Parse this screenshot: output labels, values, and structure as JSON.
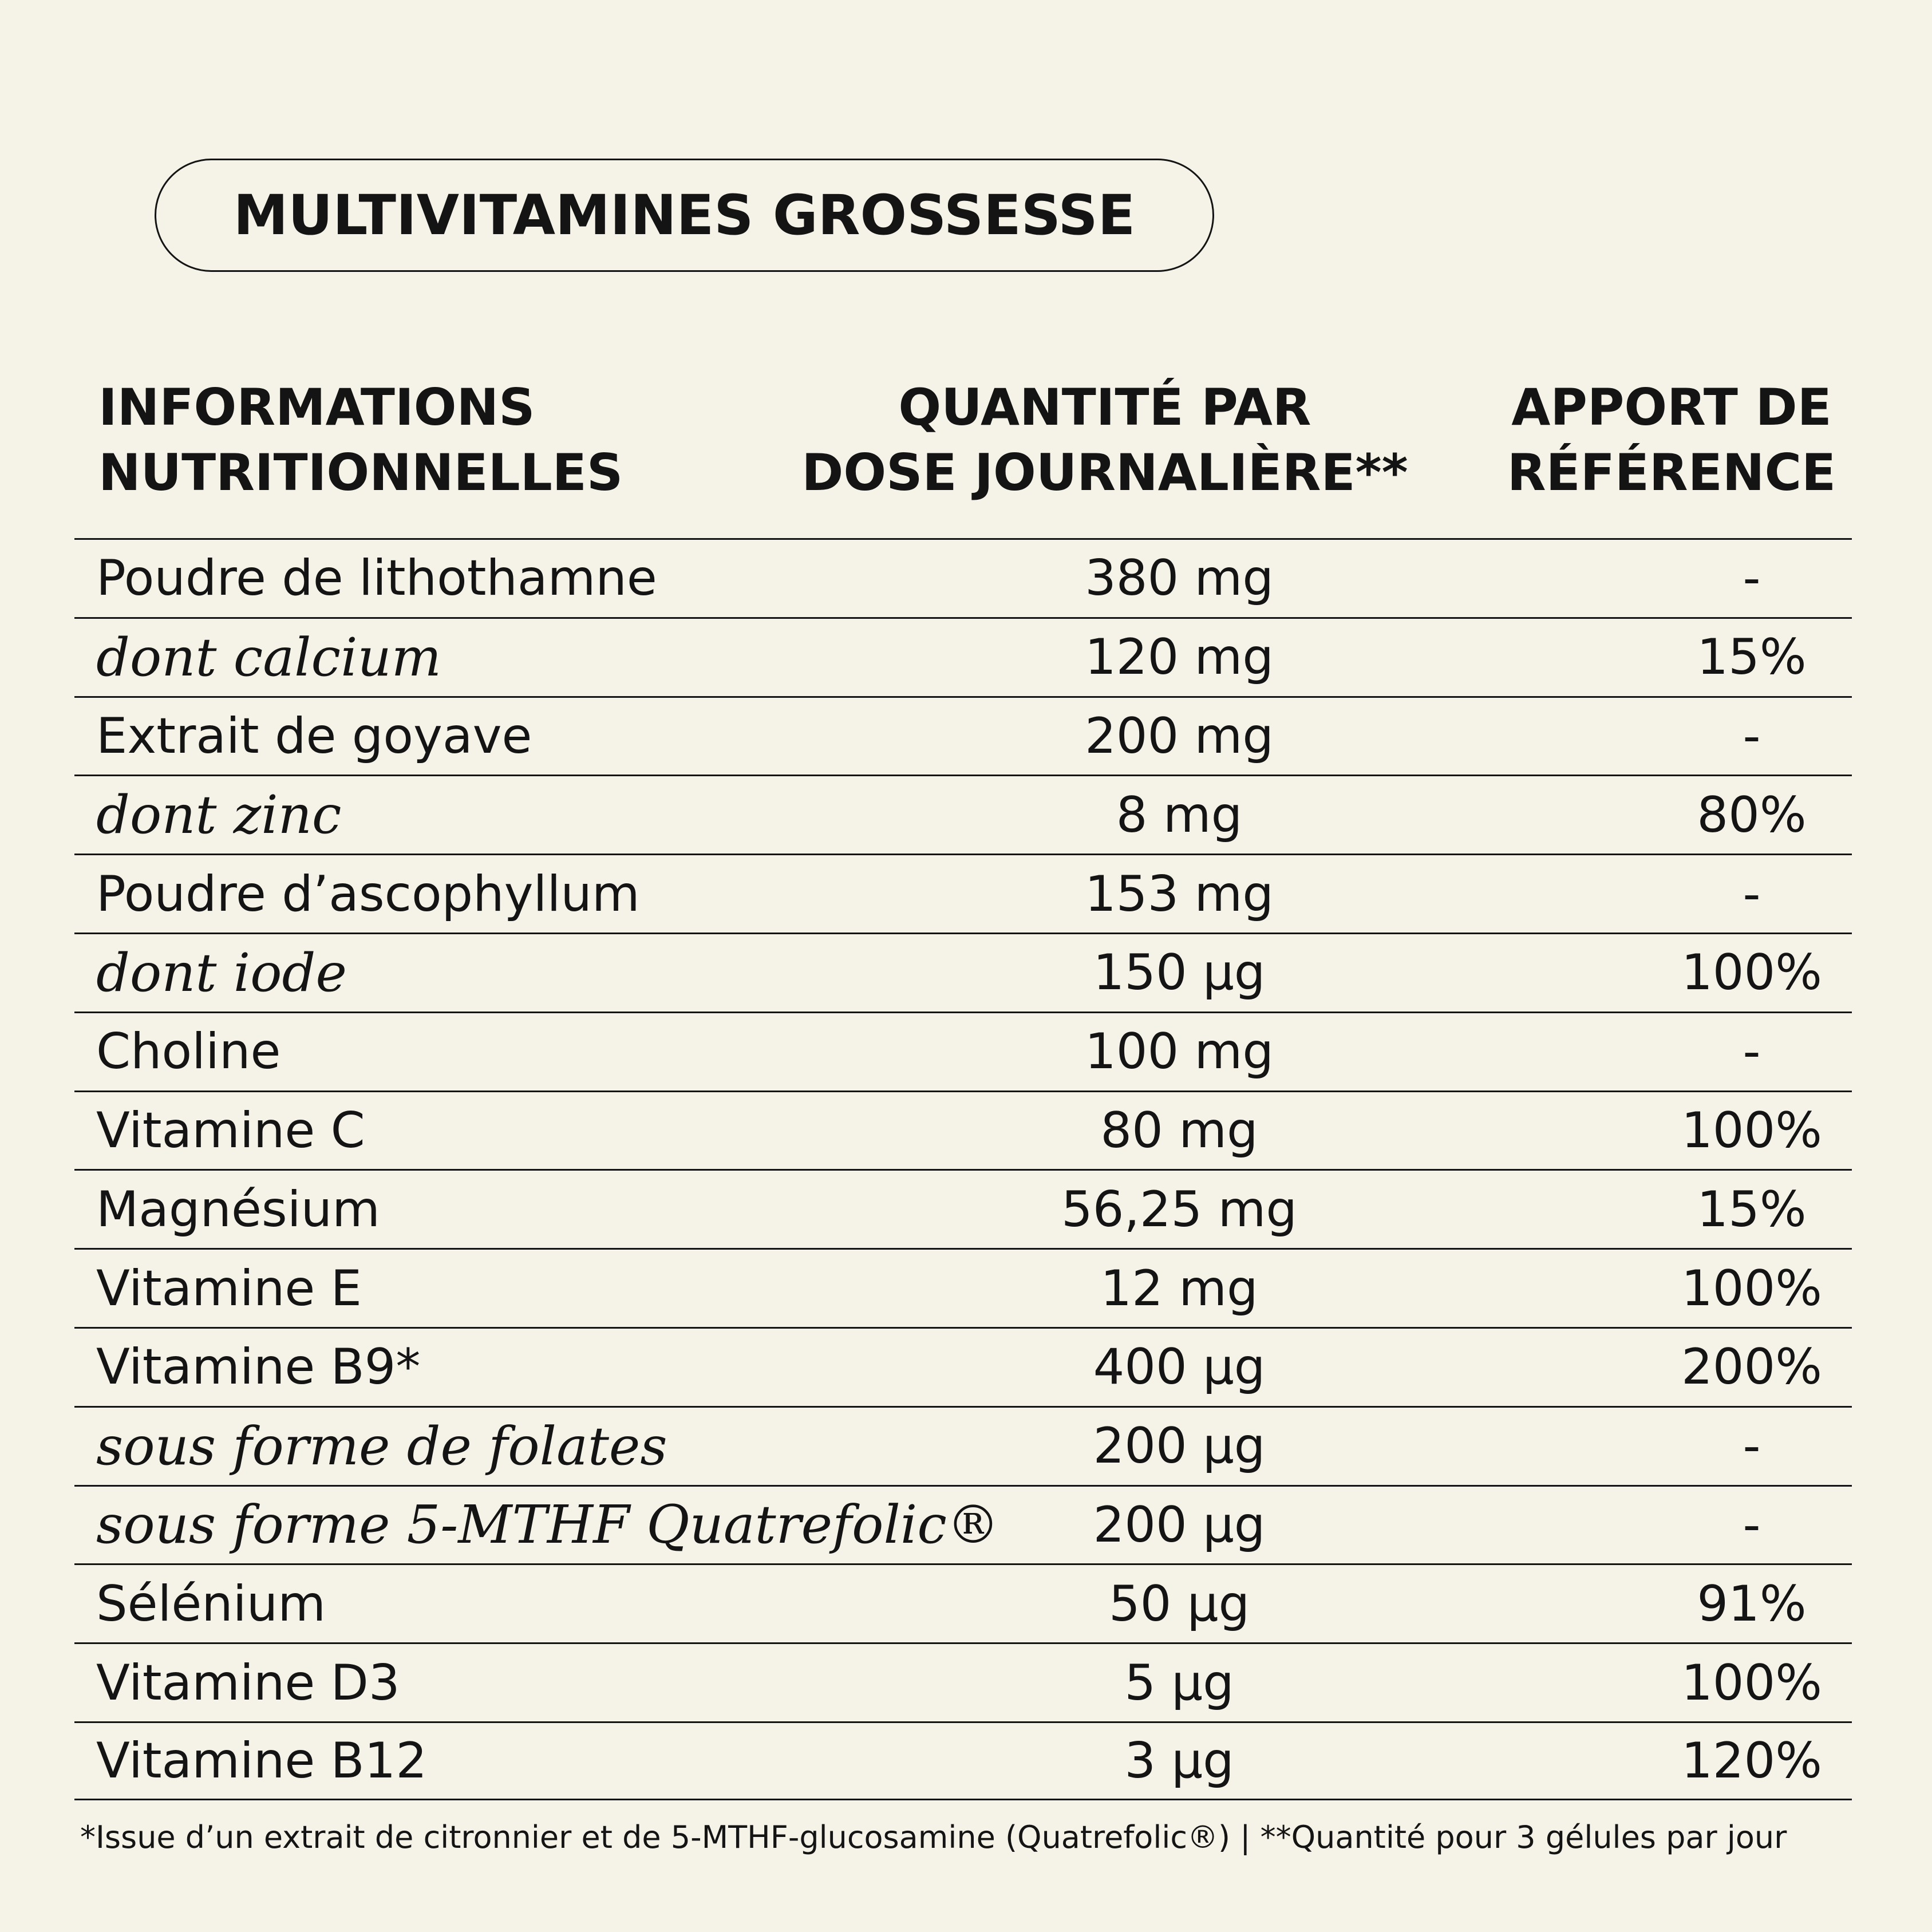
{
  "title": "MULTIVITAMINES GROSSESSE",
  "headers": {
    "info_line1": "INFORMATIONS",
    "info_line2": "NUTRITIONNELLES",
    "qty_line1": "QUANTITÉ PAR",
    "qty_line2": "DOSE JOURNALIÈRE**",
    "ref_line1": "APPORT DE",
    "ref_line2": "RÉFÉRENCE"
  },
  "rows": [
    {
      "name": "Poudre de lithothamne",
      "quantity": "380 mg",
      "reference": "-"
    },
    {
      "name": "dont calcium",
      "quantity": "120 mg",
      "reference": "15%"
    },
    {
      "name": "Extrait de goyave",
      "quantity": "200 mg",
      "reference": "-"
    },
    {
      "name": "dont zinc",
      "quantity": "8 mg",
      "reference": "80%"
    },
    {
      "name": "Poudre d’ascophyllum",
      "quantity": "153 mg",
      "reference": "-"
    },
    {
      "name": "dont iode",
      "quantity": "150 µg",
      "reference": "100%"
    },
    {
      "name": "Choline",
      "quantity": "100 mg",
      "reference": "-"
    },
    {
      "name": "Vitamine C",
      "quantity": "80 mg",
      "reference": "100%"
    },
    {
      "name": "Magnésium",
      "quantity": "56,25 mg",
      "reference": "15%"
    },
    {
      "name": "Vitamine E",
      "quantity": "12 mg",
      "reference": "100%"
    },
    {
      "name": "Vitamine B9*",
      "quantity": "400 µg",
      "reference": "200%"
    },
    {
      "name": "sous forme de folates",
      "quantity": "200 µg",
      "reference": "-"
    },
    {
      "name": "sous forme 5-MTHF Quatrefolic®",
      "quantity": "200 µg",
      "reference": "-"
    },
    {
      "name": "Sélénium",
      "quantity": "50 µg",
      "reference": "91%"
    },
    {
      "name": "Vitamine D3",
      "quantity": "5 µg",
      "reference": "100%"
    },
    {
      "name": "Vitamine B12",
      "quantity": "3 µg",
      "reference": "120%"
    }
  ],
  "footnote": "*Issue d’un extrait de citronnier et de 5-MTHF-glucosamine (Quatrefolic®) | **Quantité pour 3 gélules par jour"
}
